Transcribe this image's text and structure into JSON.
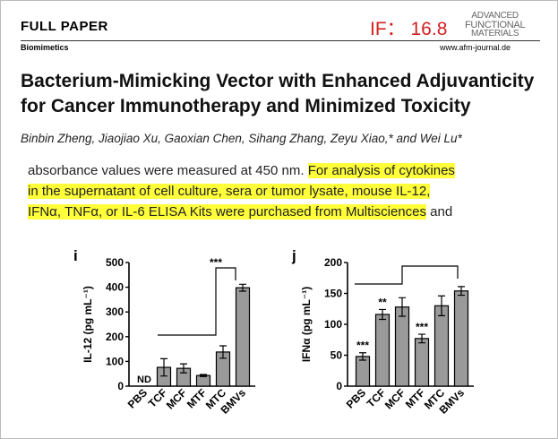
{
  "header": {
    "section": "FULL PAPER",
    "topic": "Biomimetics",
    "impact": "IF： 16.8",
    "journal_logo": [
      "ADVANCED",
      "FUNCTIONAL",
      "MATERIALS"
    ],
    "website": "www.afm-journal.de"
  },
  "article": {
    "title_lines": [
      "Bacterium-Mimicking Vector with Enhanced Adjuvanticity",
      "for Cancer Immunotherapy and Minimized Toxicity"
    ],
    "authors": "Binbin Zheng, Jiaojiao Xu, Gaoxian Chen, Sihang Zhang, Zeyu Xiao,* and Wei Lu*"
  },
  "excerpt": {
    "lead": "absorbance values were measured at 450 nm.",
    "highlight_lines": [
      "For analysis of cytokines",
      "in the supernatant of cell culture, sera or tumor lysate, mouse IL-12,",
      "IFNα, TNFα, or IL-6 ELISA Kits were purchased from Multisciences"
    ],
    "tail": "and"
  },
  "chart_data": [
    {
      "type": "bar",
      "panel": "i",
      "y_label": "IL-12 (pg mL⁻¹)",
      "categories": [
        "PBS",
        "TCF",
        "MCF",
        "MTF",
        "MTC",
        "BMVs"
      ],
      "values": [
        null,
        76,
        72,
        43,
        138,
        398
      ],
      "errors": [
        null,
        35,
        18,
        4,
        25,
        14
      ],
      "value_labels": [
        "ND",
        null,
        null,
        null,
        null,
        null
      ],
      "bracket_label": "***",
      "color": "#9a9a9a",
      "ylim": [
        0,
        500
      ],
      "yticks": [
        0,
        100,
        200,
        300,
        400,
        500
      ]
    },
    {
      "type": "bar",
      "panel": "j",
      "y_label": "IFNα (pg mL⁻¹)",
      "categories": [
        "PBS",
        "TCF",
        "MCF",
        "MTF",
        "MTC",
        "BMVs"
      ],
      "values": [
        48,
        116,
        128,
        77,
        130,
        154
      ],
      "errors": [
        6,
        8,
        15,
        7,
        16,
        7
      ],
      "significance": [
        "***",
        "**",
        null,
        "***",
        null,
        null
      ],
      "color": "#9a9a9a",
      "ylim": [
        0,
        200
      ],
      "yticks": [
        0,
        50,
        100,
        150,
        200
      ]
    }
  ]
}
